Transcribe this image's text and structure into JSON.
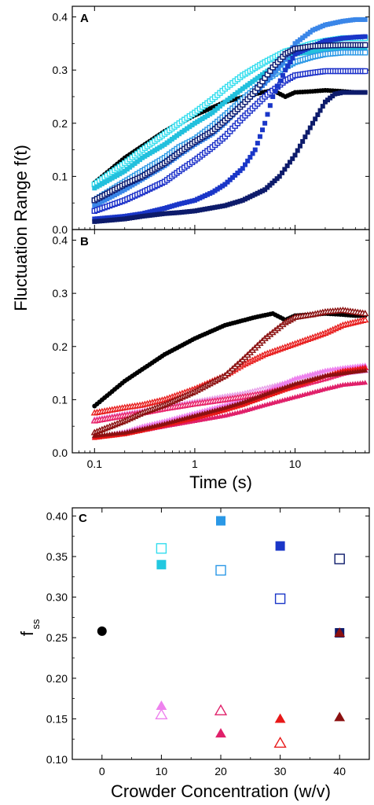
{
  "chart_data": [
    {
      "panel": "A",
      "type": "scatter",
      "ylabel": "Fluctuation Range f(t)",
      "xlabel": "",
      "xscale": "log",
      "xlim": [
        0.06,
        55
      ],
      "ylim": [
        0,
        0.42
      ],
      "yticks": [
        "0.0",
        "0.1",
        "0.2",
        "0.3",
        "0.4"
      ],
      "xticks": [
        "0.1",
        "1",
        "10"
      ],
      "series": [
        {
          "color": "#000000",
          "marker": "circle-filled",
          "x": [
            0.1,
            0.2,
            0.5,
            1,
            2,
            4,
            6,
            8,
            10,
            15,
            20,
            30,
            40,
            50
          ],
          "y": [
            0.088,
            0.135,
            0.185,
            0.215,
            0.24,
            0.255,
            0.262,
            0.25,
            0.258,
            0.26,
            0.262,
            0.26,
            0.258,
            0.258
          ]
        },
        {
          "color": "#33ddee",
          "marker": "square-open",
          "x": [
            0.1,
            0.2,
            0.3,
            0.5,
            0.7,
            1,
            1.5,
            2,
            3,
            5,
            8,
            10,
            15,
            20,
            30,
            40,
            50
          ],
          "y": [
            0.085,
            0.125,
            0.15,
            0.18,
            0.2,
            0.22,
            0.245,
            0.265,
            0.29,
            0.315,
            0.335,
            0.34,
            0.35,
            0.355,
            0.36,
            0.36,
            0.36
          ]
        },
        {
          "color": "#22c0dd",
          "marker": "square-filled",
          "x": [
            0.1,
            0.2,
            0.3,
            0.5,
            0.7,
            1,
            1.5,
            2,
            3,
            5,
            8,
            10,
            15,
            20,
            30,
            40,
            50
          ],
          "y": [
            0.078,
            0.11,
            0.135,
            0.16,
            0.18,
            0.2,
            0.22,
            0.24,
            0.265,
            0.295,
            0.32,
            0.33,
            0.335,
            0.338,
            0.34,
            0.34,
            0.34
          ]
        },
        {
          "color": "#2a98e6",
          "marker": "square-open",
          "x": [
            0.1,
            0.2,
            0.3,
            0.5,
            0.7,
            1,
            1.5,
            2,
            3,
            5,
            8,
            10,
            15,
            20,
            30,
            40,
            50
          ],
          "y": [
            0.055,
            0.09,
            0.11,
            0.135,
            0.155,
            0.17,
            0.195,
            0.215,
            0.245,
            0.28,
            0.305,
            0.315,
            0.325,
            0.33,
            0.333,
            0.333,
            0.333
          ]
        },
        {
          "color": "#3a86e8",
          "marker": "square-filled",
          "x": [
            0.1,
            0.2,
            0.3,
            0.5,
            0.7,
            1,
            1.5,
            2,
            3,
            5,
            8,
            10,
            15,
            20,
            30,
            40,
            50
          ],
          "y": [
            0.045,
            0.075,
            0.095,
            0.12,
            0.14,
            0.16,
            0.18,
            0.2,
            0.235,
            0.275,
            0.32,
            0.35,
            0.375,
            0.385,
            0.392,
            0.395,
            0.395
          ]
        },
        {
          "color": "#1a2fc8",
          "marker": "square-open",
          "x": [
            0.1,
            0.2,
            0.3,
            0.5,
            0.7,
            1,
            1.5,
            2,
            3,
            5,
            8,
            10,
            15,
            20,
            30,
            40,
            50
          ],
          "y": [
            0.035,
            0.055,
            0.07,
            0.09,
            0.11,
            0.13,
            0.155,
            0.175,
            0.21,
            0.25,
            0.28,
            0.29,
            0.295,
            0.298,
            0.298,
            0.298,
            0.298
          ]
        },
        {
          "color": "#1a36c8",
          "marker": "square-filled",
          "x": [
            0.1,
            0.2,
            0.3,
            0.5,
            0.7,
            1,
            1.5,
            2,
            3,
            4,
            5,
            6,
            8,
            10,
            15,
            20,
            30,
            40,
            50
          ],
          "y": [
            0.02,
            0.025,
            0.03,
            0.04,
            0.048,
            0.055,
            0.07,
            0.085,
            0.115,
            0.15,
            0.2,
            0.25,
            0.3,
            0.33,
            0.345,
            0.355,
            0.36,
            0.362,
            0.363
          ]
        },
        {
          "color": "#0a1a70",
          "marker": "square-open",
          "x": [
            0.1,
            0.2,
            0.3,
            0.5,
            0.7,
            1,
            1.5,
            2,
            3,
            4,
            5,
            6,
            8,
            10,
            15,
            20,
            30,
            40,
            50
          ],
          "y": [
            0.055,
            0.085,
            0.1,
            0.125,
            0.145,
            0.165,
            0.185,
            0.205,
            0.235,
            0.26,
            0.285,
            0.305,
            0.33,
            0.34,
            0.345,
            0.346,
            0.347,
            0.347,
            0.347
          ]
        },
        {
          "color": "#0d1b6b",
          "marker": "square-filled",
          "x": [
            0.1,
            0.2,
            0.3,
            0.5,
            0.7,
            1,
            2,
            3,
            5,
            7,
            10,
            15,
            20,
            25,
            30,
            40,
            50
          ],
          "y": [
            0.015,
            0.02,
            0.025,
            0.03,
            0.032,
            0.035,
            0.045,
            0.055,
            0.075,
            0.1,
            0.14,
            0.2,
            0.24,
            0.255,
            0.258,
            0.258,
            0.258
          ]
        }
      ]
    },
    {
      "panel": "B",
      "type": "scatter",
      "xlabel": "Time (s)",
      "ylabel": "",
      "xscale": "log",
      "xlim": [
        0.06,
        55
      ],
      "ylim": [
        0,
        0.42
      ],
      "yticks": [
        "0.0",
        "0.1",
        "0.2",
        "0.3",
        "0.4"
      ],
      "xticks": [
        "0.1",
        "1",
        "10"
      ],
      "series": [
        {
          "color": "#000000",
          "marker": "circle-filled",
          "x": [
            0.1,
            0.2,
            0.5,
            1,
            2,
            4,
            6,
            8,
            10,
            15,
            20,
            30,
            40,
            50
          ],
          "y": [
            0.088,
            0.135,
            0.185,
            0.215,
            0.24,
            0.255,
            0.262,
            0.25,
            0.258,
            0.26,
            0.262,
            0.26,
            0.258,
            0.258
          ]
        },
        {
          "color": "#e8a0e8",
          "marker": "triangle-open",
          "x": [
            0.1,
            0.2,
            0.3,
            0.5,
            1,
            2,
            3,
            5,
            10,
            20,
            30,
            50
          ],
          "y": [
            0.062,
            0.072,
            0.078,
            0.085,
            0.095,
            0.105,
            0.11,
            0.12,
            0.135,
            0.145,
            0.15,
            0.155
          ]
        },
        {
          "color": "#ee82ee",
          "marker": "triangle-filled",
          "x": [
            0.1,
            0.2,
            0.3,
            0.5,
            1,
            2,
            3,
            5,
            10,
            20,
            30,
            50
          ],
          "y": [
            0.03,
            0.04,
            0.05,
            0.06,
            0.075,
            0.09,
            0.1,
            0.115,
            0.14,
            0.155,
            0.16,
            0.165
          ]
        },
        {
          "color": "#e8266c",
          "marker": "triangle-open",
          "x": [
            0.1,
            0.2,
            0.3,
            0.5,
            1,
            2,
            3,
            5,
            10,
            20,
            30,
            50
          ],
          "y": [
            0.06,
            0.07,
            0.075,
            0.083,
            0.092,
            0.1,
            0.105,
            0.112,
            0.125,
            0.14,
            0.15,
            0.16
          ]
        },
        {
          "color": "#e0206a",
          "marker": "triangle-filled",
          "x": [
            0.1,
            0.2,
            0.3,
            0.5,
            1,
            2,
            3,
            5,
            10,
            20,
            30,
            50
          ],
          "y": [
            0.03,
            0.036,
            0.042,
            0.05,
            0.06,
            0.07,
            0.078,
            0.09,
            0.105,
            0.12,
            0.128,
            0.132
          ]
        },
        {
          "color": "#e82020",
          "marker": "triangle-open",
          "x": [
            0.1,
            0.2,
            0.3,
            0.5,
            1,
            2,
            3,
            5,
            10,
            20,
            30,
            50
          ],
          "y": [
            0.075,
            0.085,
            0.09,
            0.1,
            0.12,
            0.145,
            0.165,
            0.185,
            0.205,
            0.225,
            0.24,
            0.25
          ]
        },
        {
          "color": "#e81818",
          "marker": "triangle-filled",
          "x": [
            0.1,
            0.2,
            0.3,
            0.5,
            1,
            2,
            3,
            5,
            10,
            20,
            30,
            50
          ],
          "y": [
            0.028,
            0.035,
            0.042,
            0.052,
            0.065,
            0.08,
            0.09,
            0.105,
            0.125,
            0.145,
            0.155,
            0.16
          ]
        },
        {
          "color": "#8b1010",
          "marker": "triangle-open",
          "x": [
            0.1,
            0.2,
            0.3,
            0.5,
            1,
            2,
            3,
            5,
            8,
            10,
            15,
            20,
            30,
            50
          ],
          "y": [
            0.038,
            0.06,
            0.075,
            0.09,
            0.115,
            0.145,
            0.175,
            0.215,
            0.245,
            0.255,
            0.26,
            0.265,
            0.268,
            0.262
          ]
        },
        {
          "color": "#8b1010",
          "marker": "triangle-filled",
          "x": [
            0.1,
            0.2,
            0.3,
            0.5,
            1,
            2,
            3,
            5,
            10,
            20,
            30,
            50
          ],
          "y": [
            0.032,
            0.038,
            0.045,
            0.055,
            0.07,
            0.085,
            0.095,
            0.11,
            0.13,
            0.145,
            0.15,
            0.155
          ]
        }
      ]
    },
    {
      "panel": "C",
      "type": "scatter",
      "xlabel": "Crowder Concentration (w/v)",
      "ylabel": "f",
      "ylabel_sub": "ss",
      "xlim": [
        -5,
        45
      ],
      "ylim": [
        0.1,
        0.41
      ],
      "xticks": [
        "0",
        "10",
        "20",
        "30",
        "40"
      ],
      "yticks": [
        "0.10",
        "0.15",
        "0.20",
        "0.25",
        "0.30",
        "0.35",
        "0.40"
      ],
      "points": [
        {
          "x": 0,
          "y": 0.258,
          "color": "#000000",
          "marker": "circle-filled"
        },
        {
          "x": 10,
          "y": 0.36,
          "color": "#33ddee",
          "marker": "square-open"
        },
        {
          "x": 10,
          "y": 0.34,
          "color": "#22c8e0",
          "marker": "square-filled"
        },
        {
          "x": 20,
          "y": 0.394,
          "color": "#2a98e6",
          "marker": "square-filled"
        },
        {
          "x": 20,
          "y": 0.333,
          "color": "#2a98e6",
          "marker": "square-open"
        },
        {
          "x": 30,
          "y": 0.363,
          "color": "#1a36c8",
          "marker": "square-filled"
        },
        {
          "x": 30,
          "y": 0.298,
          "color": "#1a36c8",
          "marker": "square-open"
        },
        {
          "x": 40,
          "y": 0.347,
          "color": "#0d1b6b",
          "marker": "square-open"
        },
        {
          "x": 40,
          "y": 0.256,
          "color": "#0d1b6b",
          "marker": "square-filled"
        },
        {
          "x": 40,
          "y": 0.256,
          "color": "#8b1010",
          "marker": "triangle-filled"
        },
        {
          "x": 10,
          "y": 0.166,
          "color": "#ee82ee",
          "marker": "triangle-filled"
        },
        {
          "x": 10,
          "y": 0.155,
          "color": "#ee82ee",
          "marker": "triangle-open"
        },
        {
          "x": 20,
          "y": 0.16,
          "color": "#e0206a",
          "marker": "triangle-open"
        },
        {
          "x": 20,
          "y": 0.132,
          "color": "#e0206a",
          "marker": "triangle-filled"
        },
        {
          "x": 30,
          "y": 0.15,
          "color": "#e81818",
          "marker": "triangle-filled"
        },
        {
          "x": 30,
          "y": 0.12,
          "color": "#e81818",
          "marker": "triangle-open"
        },
        {
          "x": 40,
          "y": 0.152,
          "color": "#8b1010",
          "marker": "triangle-filled"
        }
      ]
    }
  ]
}
